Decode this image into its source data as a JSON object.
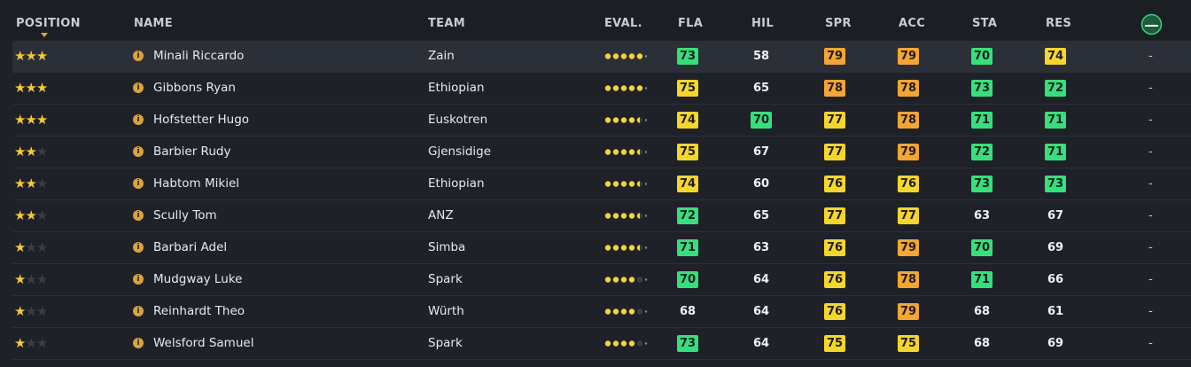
{
  "header": {
    "columns": [
      "POSITION",
      "NAME",
      "TEAM",
      "EVAL.",
      "FLA",
      "HIL",
      "SPR",
      "ACC",
      "STA",
      "RES"
    ]
  },
  "star_slots": 3,
  "eval_slots": 5,
  "stat_colors": [
    {
      "min": 78,
      "color": "#f5a531"
    },
    {
      "min": 74,
      "color": "#f6d62c"
    },
    {
      "min": 70,
      "color": "#35e07c"
    }
  ],
  "rows": [
    {
      "stars": 3,
      "name": "Minali Riccardo",
      "team": "Zain",
      "eval": 5,
      "stats": [
        73,
        58,
        79,
        79,
        70,
        74
      ],
      "extra": "-"
    },
    {
      "stars": 3,
      "name": "Gibbons Ryan",
      "team": "Ethiopian",
      "eval": 5,
      "stats": [
        75,
        65,
        78,
        78,
        73,
        72
      ],
      "extra": "-"
    },
    {
      "stars": 3,
      "name": "Hofstetter Hugo",
      "team": "Euskotren",
      "eval": 4.5,
      "stats": [
        74,
        70,
        77,
        78,
        71,
        71
      ],
      "extra": "-"
    },
    {
      "stars": 2,
      "name": "Barbier Rudy",
      "team": "Gjensidige",
      "eval": 4.5,
      "stats": [
        75,
        67,
        77,
        79,
        72,
        71
      ],
      "extra": "-"
    },
    {
      "stars": 2,
      "name": "Habtom Mikiel",
      "team": "Ethiopian",
      "eval": 4.5,
      "stats": [
        74,
        60,
        76,
        76,
        73,
        73
      ],
      "extra": "-"
    },
    {
      "stars": 2,
      "name": "Scully Tom",
      "team": "ANZ",
      "eval": 4.5,
      "stats": [
        72,
        65,
        77,
        77,
        63,
        67
      ],
      "extra": "-"
    },
    {
      "stars": 1,
      "name": "Barbari Adel",
      "team": "Simba",
      "eval": 4.5,
      "stats": [
        71,
        63,
        76,
        79,
        70,
        69
      ],
      "extra": "-"
    },
    {
      "stars": 1,
      "name": "Mudgway Luke",
      "team": "Spark",
      "eval": 4,
      "stats": [
        70,
        64,
        76,
        78,
        71,
        66
      ],
      "extra": "-"
    },
    {
      "stars": 1,
      "name": "Reinhardt Theo",
      "team": "Würth",
      "eval": 4,
      "stats": [
        68,
        64,
        76,
        79,
        68,
        61
      ],
      "extra": "-"
    },
    {
      "stars": 1,
      "name": "Welsford Samuel",
      "team": "Spark",
      "eval": 4,
      "stats": [
        73,
        64,
        75,
        75,
        68,
        69
      ],
      "extra": "-"
    }
  ]
}
